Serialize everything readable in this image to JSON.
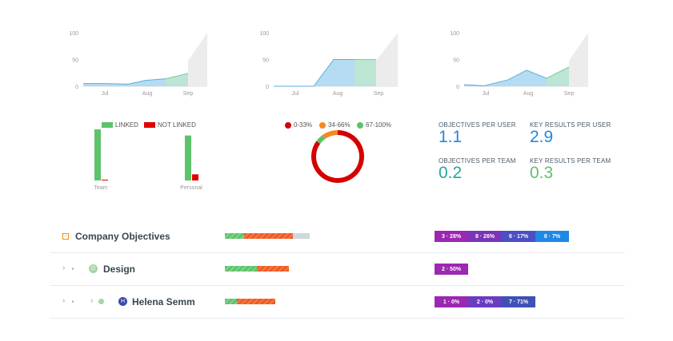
{
  "charts": [
    {
      "type": "area",
      "ymax": 100,
      "y_ticks": [
        "100",
        "50",
        "0"
      ],
      "x_labels": [
        "Jul",
        "Aug",
        "Sep"
      ],
      "x": [
        "Jun 20",
        "Jul 1",
        "Jul 15",
        "Aug 1",
        "Aug 15",
        "Sep 1",
        "Sep 15"
      ],
      "series": [
        {
          "values": [
            5,
            5,
            4,
            11,
            14,
            null,
            null
          ],
          "color": "#a8d6f0"
        },
        {
          "values": [
            null,
            null,
            null,
            null,
            14,
            24,
            null
          ],
          "color": "#b2e0cc"
        }
      ]
    },
    {
      "type": "area",
      "ymax": 100,
      "y_ticks": [
        "100",
        "50",
        "0"
      ],
      "x_labels": [
        "Jul",
        "Aug",
        "Sep"
      ],
      "x": [
        "Jun 20",
        "Jul 10",
        "Jul 25",
        "Aug 1",
        "Aug 15",
        "Sep 1",
        "Sep 15"
      ],
      "series": [
        {
          "values": [
            0,
            0,
            0,
            50,
            50,
            null,
            null
          ],
          "color": "#a8d6f0"
        },
        {
          "values": [
            null,
            null,
            null,
            null,
            50,
            50,
            null
          ],
          "color": "#b2e0cc"
        }
      ]
    },
    {
      "type": "area",
      "ymax": 100,
      "y_ticks": [
        "100",
        "50",
        "0"
      ],
      "x_labels": [
        "Jul",
        "Aug",
        "Sep"
      ],
      "x": [
        "Jun 20",
        "Jul 1",
        "Jul 15",
        "Aug 1",
        "Aug 15",
        "Sep 1",
        "Sep 15"
      ],
      "series": [
        {
          "values": [
            3,
            1,
            12,
            30,
            15,
            null,
            null
          ],
          "color": "#a8d6f0"
        },
        {
          "values": [
            null,
            null,
            null,
            null,
            15,
            36,
            null
          ],
          "color": "#b2e0cc"
        }
      ]
    }
  ],
  "linked": {
    "legend": [
      {
        "label": "LINKED",
        "color": "#5cc36b"
      },
      {
        "label": "NOT LINKED",
        "color": "#e00000"
      }
    ],
    "groups": [
      {
        "label": "Team",
        "linked": 100,
        "not_linked": 1
      },
      {
        "label": "Personal",
        "linked": 88,
        "not_linked": 12
      }
    ]
  },
  "donut": {
    "legend": [
      {
        "label": "0-33%",
        "color": "#d50000"
      },
      {
        "label": "34-66%",
        "color": "#f28a1c"
      },
      {
        "label": "67-100%",
        "color": "#5cc36b"
      }
    ],
    "slices": [
      {
        "value": 85,
        "color": "#d50000"
      },
      {
        "value": 10,
        "color": "#f28a1c"
      },
      {
        "value": 5,
        "color": "#5cc36b"
      }
    ]
  },
  "stats": [
    {
      "label": "OBJECTIVES PER USER",
      "value": "1.1",
      "color": "#1e88e5"
    },
    {
      "label": "KEY RESULTS PER USER",
      "value": "2.9",
      "color": "#1e88e5"
    },
    {
      "label": "OBJECTIVES PER TEAM",
      "value": "0.2",
      "color": "#26a69a"
    },
    {
      "label": "KEY RESULTS PER TEAM",
      "value": "0.3",
      "color": "#5cc36b"
    }
  ],
  "rows": [
    {
      "title": "Company Objectives",
      "progress": {
        "green": 0.22,
        "orange": 0.55,
        "grey": 0.19
      },
      "pills": [
        {
          "label": "3 · 28%",
          "color": "#9c27b0"
        },
        {
          "label": "8 · 26%",
          "color": "#7b34b8"
        },
        {
          "label": "6 · 17%",
          "color": "#4a4fc4"
        },
        {
          "label": "8 · 7%",
          "color": "#1e88e5"
        }
      ]
    },
    {
      "title": "Design",
      "avatar": "D",
      "progress": {
        "green": 0.4,
        "orange": 0.4,
        "grey": 0
      },
      "pills": [
        {
          "label": "2 · 50%",
          "color": "#9c27b0"
        }
      ]
    },
    {
      "title": "Helena Semm",
      "avatar": "H",
      "progress": {
        "green": 0.15,
        "orange": 0.48,
        "grey": 0
      },
      "pills": [
        {
          "label": "1 · 0%",
          "color": "#9c27b0"
        },
        {
          "label": "2 · 0%",
          "color": "#6a3cc0"
        },
        {
          "label": "7 · 71%",
          "color": "#3f51b5"
        }
      ]
    }
  ]
}
